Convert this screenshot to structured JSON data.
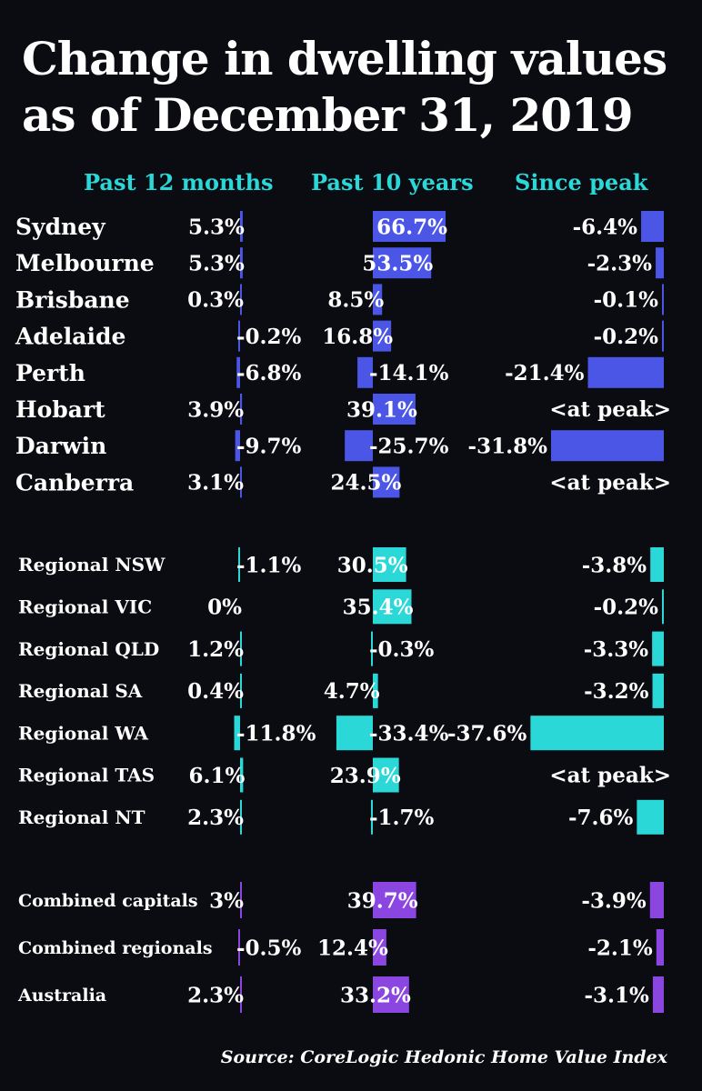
{
  "title_line1": "Change in dwelling values",
  "title_line2": "as of December 31, 2019",
  "source": "Source: CoreLogic Hedonic Home Value Index",
  "colors": {
    "background": "#0b0b12",
    "capitals": "#4b55e6",
    "regional": "#2ad8d8",
    "combined": "#8b45e0",
    "text": "#ffffff",
    "header": "#2ad8d8"
  },
  "chart_data": {
    "type": "bar",
    "title": "Change in dwelling values as of December 31, 2019",
    "units": "%",
    "columns": [
      "Past 12 months",
      "Past 10 years",
      "Since peak"
    ],
    "groups": [
      {
        "color": "#4b55e6",
        "rows": [
          {
            "name": "Sydney",
            "values": [
              5.3,
              66.7,
              -6.4
            ]
          },
          {
            "name": "Melbourne",
            "values": [
              5.3,
              53.5,
              -2.3
            ]
          },
          {
            "name": "Brisbane",
            "values": [
              0.3,
              8.5,
              -0.1
            ]
          },
          {
            "name": "Adelaide",
            "values": [
              -0.2,
              16.8,
              -0.2
            ]
          },
          {
            "name": "Perth",
            "values": [
              -6.8,
              -14.1,
              -21.4
            ]
          },
          {
            "name": "Hobart",
            "values": [
              3.9,
              39.1,
              null
            ],
            "peak_text": "<at peak>"
          },
          {
            "name": "Darwin",
            "values": [
              -9.7,
              -25.7,
              -31.8
            ]
          },
          {
            "name": "Canberra",
            "values": [
              3.1,
              24.5,
              null
            ],
            "peak_text": "<at peak>"
          }
        ]
      },
      {
        "color": "#2ad8d8",
        "rows": [
          {
            "name": "Regional NSW",
            "values": [
              -1.1,
              30.5,
              -3.8
            ]
          },
          {
            "name": "Regional VIC",
            "values": [
              0,
              35.4,
              -0.2
            ]
          },
          {
            "name": "Regional QLD",
            "values": [
              1.2,
              -0.3,
              -3.3
            ]
          },
          {
            "name": "Regional SA",
            "values": [
              0.4,
              4.7,
              -3.2
            ]
          },
          {
            "name": "Regional WA",
            "values": [
              -11.8,
              -33.4,
              -37.6
            ]
          },
          {
            "name": "Regional TAS",
            "values": [
              6.1,
              23.9,
              null
            ],
            "peak_text": "<at peak>"
          },
          {
            "name": "Regional NT",
            "values": [
              2.3,
              -1.7,
              -7.6
            ]
          }
        ]
      },
      {
        "color": "#8b45e0",
        "rows": [
          {
            "name": "Combined capitals",
            "values": [
              3,
              39.7,
              -3.9
            ]
          },
          {
            "name": "Combined regionals",
            "values": [
              -0.5,
              12.4,
              -2.1
            ]
          },
          {
            "name": "Australia",
            "values": [
              2.3,
              33.2,
              -3.1
            ]
          }
        ]
      }
    ]
  }
}
